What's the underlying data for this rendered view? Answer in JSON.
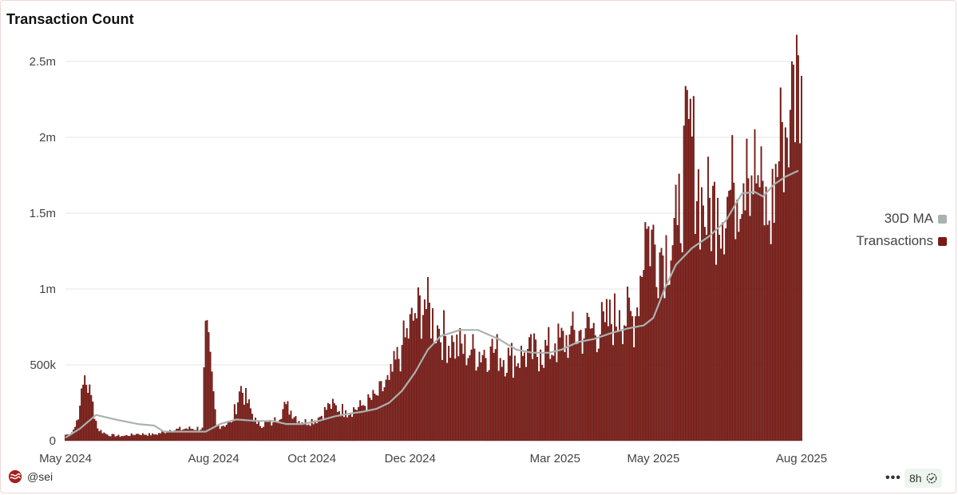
{
  "card": {
    "title": "Transaction Count"
  },
  "footer": {
    "handle": "@sei",
    "refresh_label": "8h"
  },
  "icons": {
    "brand": "sei-logo-icon",
    "more": "more-icon",
    "verified": "check-circle-icon"
  },
  "colors": {
    "bars": "#7b1a14",
    "ma": "#a9b2b0",
    "grid": "#e6e6e6"
  },
  "chart_data": {
    "type": "bar",
    "title": "Transaction Count",
    "xlabel": "",
    "ylabel": "",
    "ylim": [
      0,
      2500000
    ],
    "yticks": [
      {
        "value": 0,
        "label": "0"
      },
      {
        "value": 500000,
        "label": "500k"
      },
      {
        "value": 1000000,
        "label": "1m"
      },
      {
        "value": 1500000,
        "label": "1.5m"
      },
      {
        "value": 2000000,
        "label": "2m"
      },
      {
        "value": 2500000,
        "label": "2.5m"
      }
    ],
    "xticks": [
      {
        "date": "2024-05-01",
        "label": "May 2024"
      },
      {
        "date": "2024-08-01",
        "label": "Aug 2024"
      },
      {
        "date": "2024-10-01",
        "label": "Oct 2024"
      },
      {
        "date": "2024-12-01",
        "label": "Dec 2024"
      },
      {
        "date": "2025-03-01",
        "label": "Mar 2025"
      },
      {
        "date": "2025-05-01",
        "label": "May 2025"
      },
      {
        "date": "2025-08-01",
        "label": "Aug 2025"
      }
    ],
    "xrange": [
      "2024-05-01",
      "2025-08-01"
    ],
    "grid": true,
    "legend": "right",
    "series": [
      {
        "name": "Transactions",
        "type": "bar",
        "points": [
          [
            "2024-05-03",
            40000
          ],
          [
            "2024-05-07",
            90000
          ],
          [
            "2024-05-10",
            230000
          ],
          [
            "2024-05-13",
            430000
          ],
          [
            "2024-05-17",
            300000
          ],
          [
            "2024-05-21",
            80000
          ],
          [
            "2024-05-27",
            40000
          ],
          [
            "2024-06-05",
            30000
          ],
          [
            "2024-06-15",
            45000
          ],
          [
            "2024-06-25",
            40000
          ],
          [
            "2024-07-05",
            70000
          ],
          [
            "2024-07-15",
            80000
          ],
          [
            "2024-07-25",
            85000
          ],
          [
            "2024-07-27",
            790000
          ],
          [
            "2024-08-03",
            100000
          ],
          [
            "2024-08-12",
            120000
          ],
          [
            "2024-08-18",
            360000
          ],
          [
            "2024-08-28",
            110000
          ],
          [
            "2024-09-07",
            120000
          ],
          [
            "2024-09-15",
            240000
          ],
          [
            "2024-09-25",
            120000
          ],
          [
            "2024-10-05",
            150000
          ],
          [
            "2024-10-12",
            240000
          ],
          [
            "2024-10-22",
            200000
          ],
          [
            "2024-11-01",
            230000
          ],
          [
            "2024-11-10",
            300000
          ],
          [
            "2024-11-18",
            400000
          ],
          [
            "2024-11-26",
            630000
          ],
          [
            "2024-12-04",
            840000
          ],
          [
            "2024-12-10",
            930000
          ],
          [
            "2024-12-18",
            760000
          ],
          [
            "2024-12-28",
            650000
          ],
          [
            "2025-01-08",
            600000
          ],
          [
            "2025-01-20",
            620000
          ],
          [
            "2025-02-01",
            560000
          ],
          [
            "2025-02-10",
            580000
          ],
          [
            "2025-02-20",
            600000
          ],
          [
            "2025-03-01",
            640000
          ],
          [
            "2025-03-10",
            700000
          ],
          [
            "2025-03-20",
            740000
          ],
          [
            "2025-04-01",
            780000
          ],
          [
            "2025-04-10",
            860000
          ],
          [
            "2025-04-20",
            820000
          ],
          [
            "2025-04-26",
            1440000
          ],
          [
            "2025-05-06",
            1270000
          ],
          [
            "2025-05-16",
            1420000
          ],
          [
            "2025-05-23",
            2120000
          ],
          [
            "2025-06-01",
            1550000
          ],
          [
            "2025-06-10",
            1600000
          ],
          [
            "2025-06-20",
            1700000
          ],
          [
            "2025-06-28",
            1990000
          ],
          [
            "2025-07-05",
            1750000
          ],
          [
            "2025-07-12",
            1450000
          ],
          [
            "2025-07-20",
            2100000
          ],
          [
            "2025-07-25",
            2180000
          ],
          [
            "2025-07-30",
            2540000
          ]
        ]
      },
      {
        "name": "30D MA",
        "type": "line",
        "points": [
          [
            "2024-05-01",
            20000
          ],
          [
            "2024-05-10",
            80000
          ],
          [
            "2024-05-20",
            170000
          ],
          [
            "2024-06-01",
            140000
          ],
          [
            "2024-06-15",
            110000
          ],
          [
            "2024-06-25",
            100000
          ],
          [
            "2024-07-01",
            60000
          ],
          [
            "2024-07-15",
            60000
          ],
          [
            "2024-07-27",
            60000
          ],
          [
            "2024-08-05",
            110000
          ],
          [
            "2024-08-15",
            140000
          ],
          [
            "2024-08-28",
            130000
          ],
          [
            "2024-09-07",
            130000
          ],
          [
            "2024-09-15",
            110000
          ],
          [
            "2024-09-25",
            110000
          ],
          [
            "2024-10-05",
            130000
          ],
          [
            "2024-10-15",
            160000
          ],
          [
            "2024-10-25",
            180000
          ],
          [
            "2024-11-01",
            190000
          ],
          [
            "2024-11-10",
            210000
          ],
          [
            "2024-11-18",
            250000
          ],
          [
            "2024-11-26",
            330000
          ],
          [
            "2024-12-04",
            450000
          ],
          [
            "2024-12-12",
            600000
          ],
          [
            "2024-12-20",
            690000
          ],
          [
            "2025-01-01",
            730000
          ],
          [
            "2025-01-12",
            730000
          ],
          [
            "2025-01-25",
            670000
          ],
          [
            "2025-02-05",
            600000
          ],
          [
            "2025-02-15",
            580000
          ],
          [
            "2025-02-25",
            580000
          ],
          [
            "2025-03-05",
            600000
          ],
          [
            "2025-03-15",
            650000
          ],
          [
            "2025-03-25",
            670000
          ],
          [
            "2025-04-05",
            710000
          ],
          [
            "2025-04-15",
            740000
          ],
          [
            "2025-04-25",
            760000
          ],
          [
            "2025-05-01",
            810000
          ],
          [
            "2025-05-08",
            1000000
          ],
          [
            "2025-05-15",
            1160000
          ],
          [
            "2025-05-25",
            1270000
          ],
          [
            "2025-06-05",
            1350000
          ],
          [
            "2025-06-15",
            1450000
          ],
          [
            "2025-06-25",
            1630000
          ],
          [
            "2025-07-03",
            1640000
          ],
          [
            "2025-07-08",
            1610000
          ],
          [
            "2025-07-15",
            1690000
          ],
          [
            "2025-07-22",
            1740000
          ],
          [
            "2025-07-30",
            1780000
          ]
        ]
      }
    ]
  }
}
